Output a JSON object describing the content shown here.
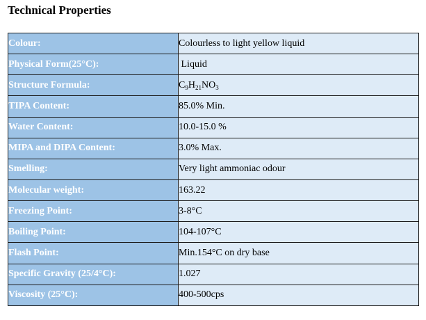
{
  "title": "Technical Properties",
  "colors": {
    "label_bg": "#9dc3e6",
    "value_bg": "#deebf7",
    "label_text": "#ffffff",
    "border": "#1a1a1a"
  },
  "rows": [
    {
      "label": "Colour:",
      "value": "Colourless to light yellow liquid"
    },
    {
      "label": "Physical Form(25°C):",
      "value": " Liquid"
    },
    {
      "label": "Structure Formula:",
      "value": "C9H21NO3"
    },
    {
      "label": "TIPA Content:",
      "value": "85.0% Min."
    },
    {
      "label": "Water Content:",
      "value": "10.0-15.0 %"
    },
    {
      "label": "MIPA and DIPA Content:",
      "value": "3.0% Max."
    },
    {
      "label": "Smelling:",
      "value": "Very light ammoniac odour"
    },
    {
      "label": "Molecular weight:",
      "value": "163.22"
    },
    {
      "label": "Freezing Point:",
      "value": "3-8°C"
    },
    {
      "label": "Boiling Point:",
      "value": "104-107°C"
    },
    {
      "label": "Flash Point:",
      "value": "Min.154°C on dry base"
    },
    {
      "label": "Specific Gravity (25/4°C):",
      "value": "1.027"
    },
    {
      "label": "Viscosity (25°C):",
      "value": "400-500cps"
    }
  ],
  "formula_parts": {
    "c": "C",
    "c_sub": "9",
    "h": "H",
    "h_sub": "21",
    "rest": "NO",
    "o_sub": "3"
  }
}
